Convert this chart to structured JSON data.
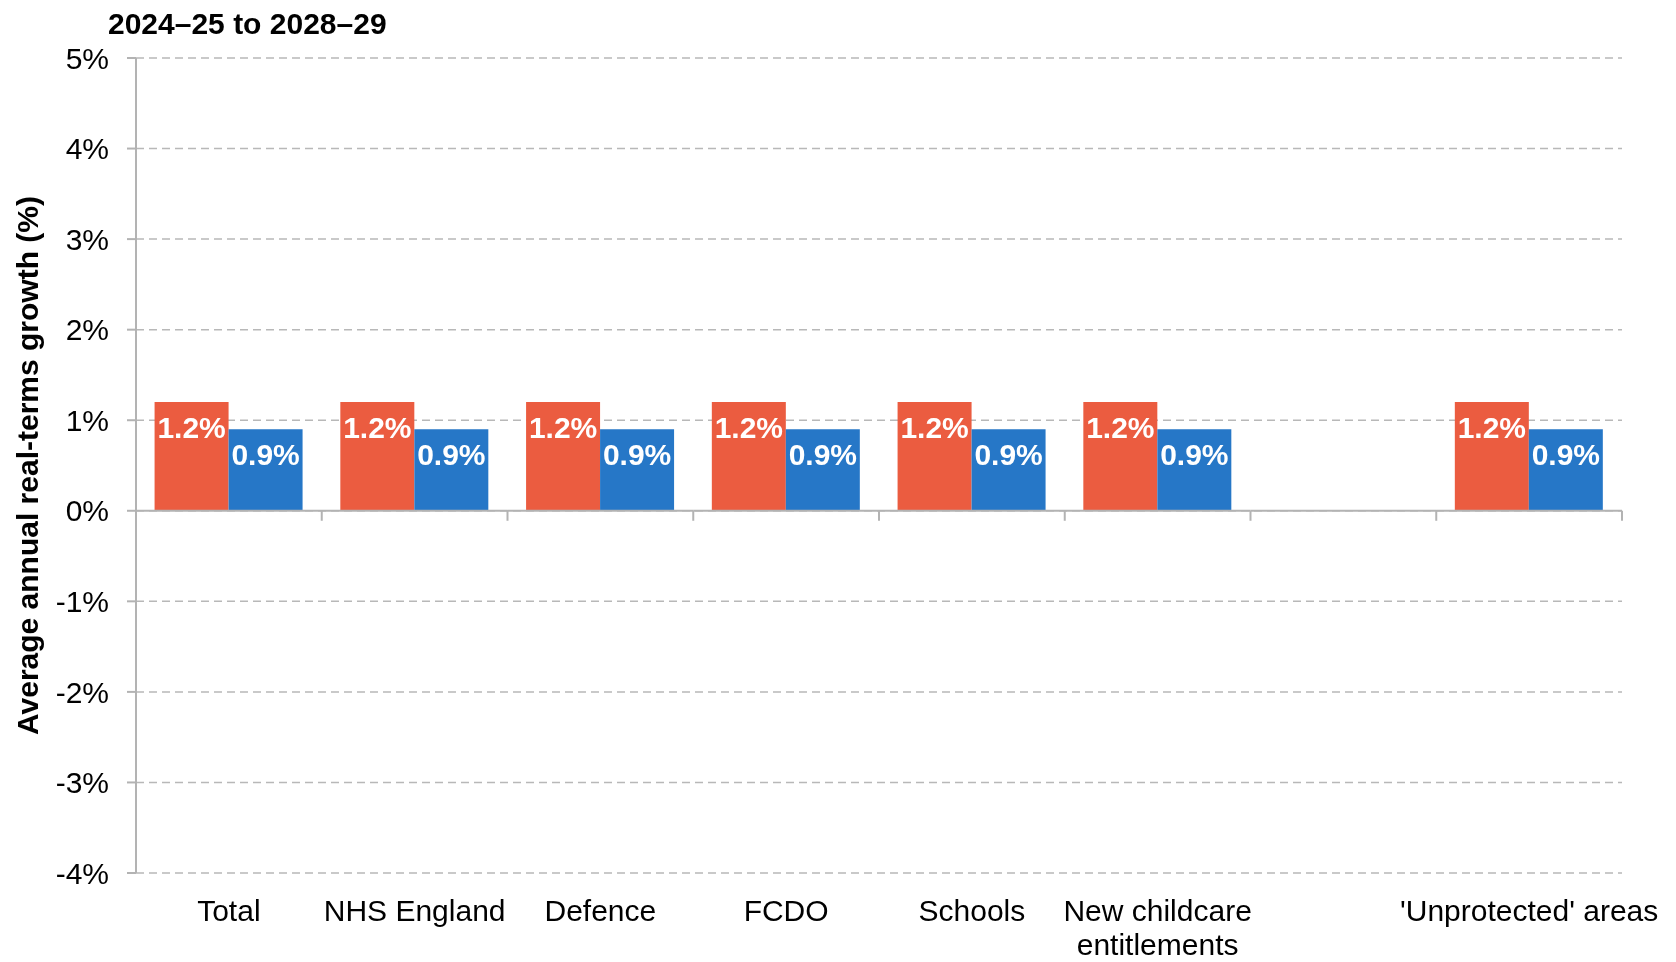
{
  "chart_data": {
    "type": "bar",
    "title": "2024–25 to 2028–29",
    "ylabel": "Average annual real-terms growth (%)",
    "categories": [
      "Total",
      "NHS England",
      "Defence",
      "FCDO",
      "Schools",
      "New childcare entitlements",
      null,
      "'Unprotected' areas"
    ],
    "series": [
      {
        "color": "#eb5c40",
        "values": [
          1.2,
          1.2,
          1.2,
          1.2,
          1.2,
          1.2,
          null,
          1.2
        ],
        "value_labels": [
          "1.2%",
          "1.2%",
          "1.2%",
          "1.2%",
          "1.2%",
          "1.2%",
          null,
          "1.2%"
        ]
      },
      {
        "color": "#2677c7",
        "values": [
          0.9,
          0.9,
          0.9,
          0.9,
          0.9,
          0.9,
          null,
          0.9
        ],
        "value_labels": [
          "0.9%",
          "0.9%",
          "0.9%",
          "0.9%",
          "0.9%",
          "0.9%",
          null,
          "0.9%"
        ]
      }
    ],
    "ylim": [
      -4,
      5
    ],
    "yticks": [
      {
        "value": -4,
        "label": "-4%"
      },
      {
        "value": -3,
        "label": "-3%"
      },
      {
        "value": -2,
        "label": "-2%"
      },
      {
        "value": -1,
        "label": "-1%"
      },
      {
        "value": 0,
        "label": "0%"
      },
      {
        "value": 1,
        "label": "1%"
      },
      {
        "value": 2,
        "label": "2%"
      },
      {
        "value": 3,
        "label": "3%"
      },
      {
        "value": 4,
        "label": "4%"
      },
      {
        "value": 5,
        "label": "5%"
      }
    ],
    "grid": "y"
  }
}
